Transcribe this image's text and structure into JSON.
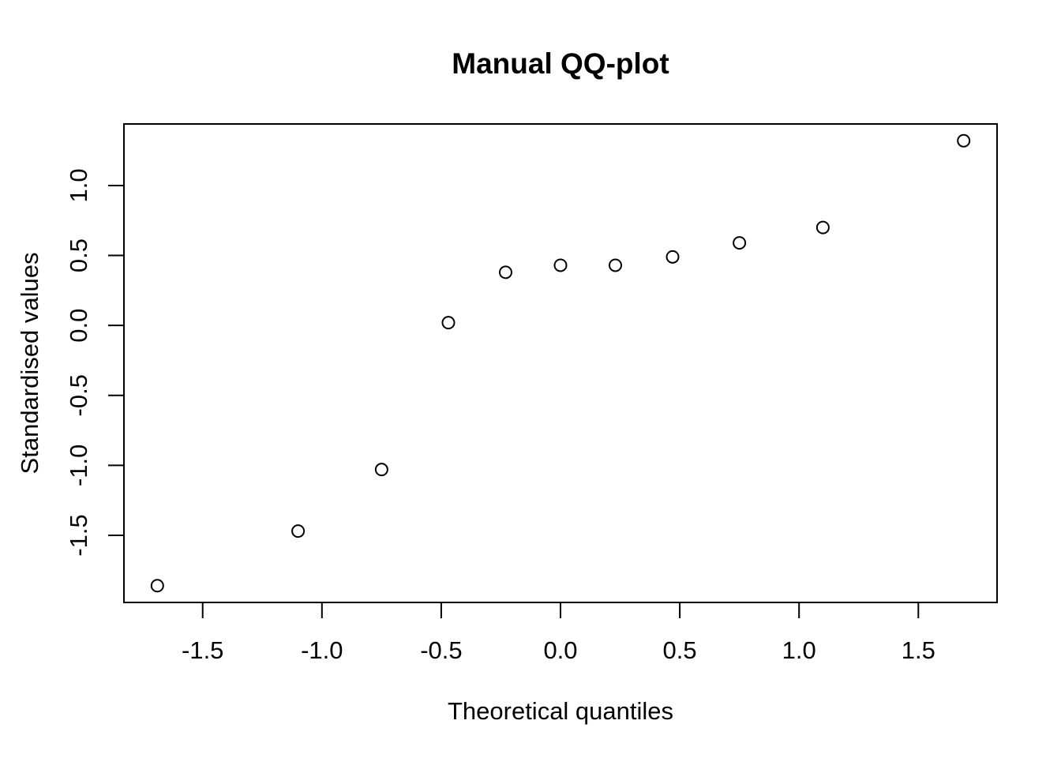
{
  "chart_data": {
    "type": "scatter",
    "title": "Manual QQ-plot",
    "xlabel": "Theoretical quantiles",
    "ylabel": "Standardised values",
    "xlim": [
      -1.83,
      1.83
    ],
    "ylim": [
      -1.98,
      1.44
    ],
    "xticks": [
      -1.5,
      -1.0,
      -0.5,
      0.0,
      0.5,
      1.0,
      1.5
    ],
    "xtick_labels": [
      "-1.5",
      "-1.0",
      "-0.5",
      "0.0",
      "0.5",
      "1.0",
      "1.5"
    ],
    "yticks": [
      -1.5,
      -1.0,
      -0.5,
      0.0,
      0.5,
      1.0
    ],
    "ytick_labels": [
      "-1.5",
      "-1.0",
      "-0.5",
      "0.0",
      "0.5",
      "1.0"
    ],
    "grid": false,
    "marker": "open-circle",
    "points": [
      {
        "x": -1.69,
        "y": -1.86
      },
      {
        "x": -1.1,
        "y": -1.47
      },
      {
        "x": -0.75,
        "y": -1.03
      },
      {
        "x": -0.47,
        "y": 0.02
      },
      {
        "x": -0.23,
        "y": 0.38
      },
      {
        "x": 0.0,
        "y": 0.43
      },
      {
        "x": 0.23,
        "y": 0.43
      },
      {
        "x": 0.47,
        "y": 0.49
      },
      {
        "x": 0.75,
        "y": 0.59
      },
      {
        "x": 1.1,
        "y": 0.7
      },
      {
        "x": 1.69,
        "y": 1.32
      }
    ]
  }
}
